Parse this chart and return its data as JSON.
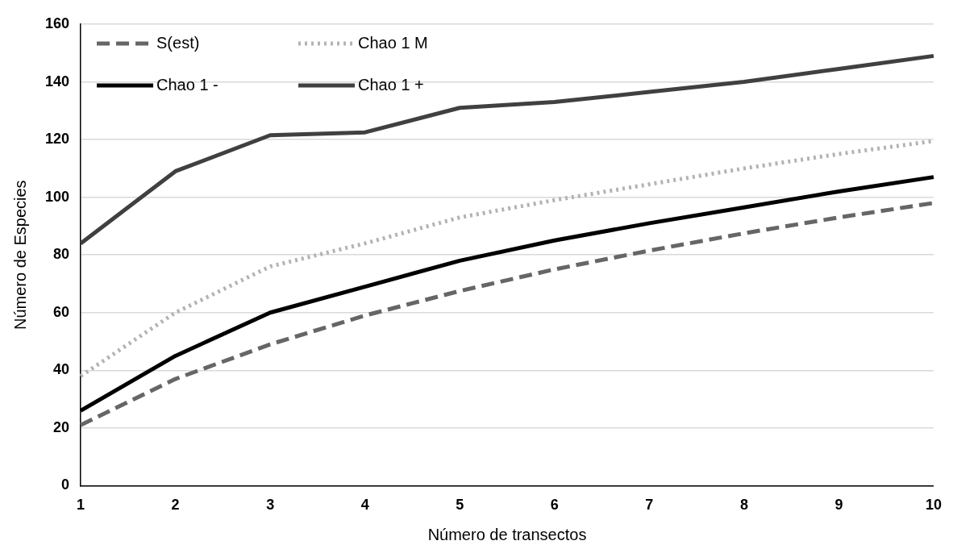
{
  "chart_data": {
    "type": "line",
    "xlabel": "Número de transectos",
    "ylabel": "Número de Especies",
    "categories": [
      "1",
      "2",
      "3",
      "4",
      "5",
      "6",
      "7",
      "8",
      "9",
      "10"
    ],
    "series": [
      {
        "name": "S(est)",
        "color": "#666666",
        "line_style": "dashed",
        "values": [
          21,
          37,
          49,
          59,
          67.5,
          75,
          81.5,
          87.5,
          93,
          98
        ]
      },
      {
        "name": "Chao 1 M",
        "color": "#b3b3b3",
        "line_style": "dotted",
        "values": [
          38,
          60,
          76,
          84,
          93,
          99,
          104.5,
          110,
          115,
          119.5
        ]
      },
      {
        "name": "Chao 1 -",
        "color": "#000000",
        "line_style": "solid",
        "values": [
          26,
          45,
          60,
          69,
          78,
          85,
          91,
          96.5,
          102,
          107
        ]
      },
      {
        "name": "Chao 1 +",
        "color": "#404040",
        "line_style": "solid",
        "values": [
          84,
          109,
          121.5,
          122.5,
          131,
          133,
          136.5,
          140,
          144.5,
          149
        ]
      }
    ],
    "ylim": [
      0,
      160
    ],
    "yticks": [
      0,
      20,
      40,
      60,
      80,
      100,
      120,
      140,
      160
    ],
    "grid": "y",
    "legend": "top left",
    "marker": "none"
  }
}
